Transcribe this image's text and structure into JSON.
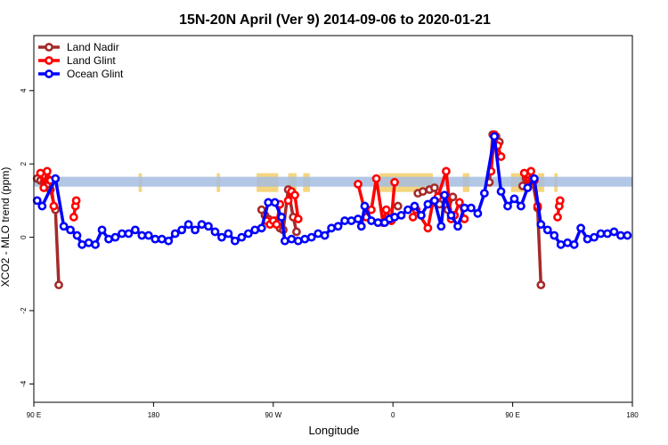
{
  "chart_data": {
    "type": "line",
    "title": "15N-20N April (Ver 9)   2014-09-06 to 2020-01-21",
    "xlabel": "Longitude",
    "ylabel": "XCO2 - MLO trend (ppm)",
    "xlim": [
      90,
      450
    ],
    "ylim": [
      -4.5,
      5.5
    ],
    "x_ticks": [
      {
        "value": 90,
        "label": "90 E"
      },
      {
        "value": 162,
        "label": "180"
      },
      {
        "value": 234,
        "label": "90 W"
      },
      {
        "value": 306,
        "label": "0"
      },
      {
        "value": 378,
        "label": "90 E"
      },
      {
        "value": 450,
        "label": "180"
      }
    ],
    "y_ticks": [
      {
        "value": -4,
        "label": "-4"
      },
      {
        "value": -2,
        "label": "-2"
      },
      {
        "value": 0,
        "label": "0"
      },
      {
        "value": 2,
        "label": "2"
      },
      {
        "value": 4,
        "label": "4"
      }
    ],
    "grid": false,
    "legend_position": "top-left",
    "band": {
      "y0": 1.38,
      "y1": 1.65,
      "color": "#a4bde0"
    },
    "land_color": "#f5d67e",
    "land_spans": [
      [
        97,
        99
      ],
      [
        153,
        155
      ],
      [
        200,
        202
      ],
      [
        224,
        237
      ],
      [
        243,
        248
      ],
      [
        252,
        256
      ],
      [
        298,
        330
      ],
      [
        348,
        352
      ],
      [
        377,
        387
      ],
      [
        393,
        397
      ],
      [
        403,
        405
      ]
    ],
    "series": [
      {
        "name": "Land Nadir",
        "color": "#a52a2a",
        "segments": [
          [
            [
              92,
              1.6
            ],
            [
              94,
              1.55
            ],
            [
              96,
              1.5
            ],
            [
              98,
              1.4
            ],
            [
              100,
              1.3
            ],
            [
              103,
              0.75
            ],
            [
              105,
              -1.3
            ]
          ],
          [
            [
              227,
              0.75
            ],
            [
              229,
              0.6
            ],
            [
              231,
              0.5
            ],
            [
              235,
              0.45
            ],
            [
              238,
              0.25
            ],
            [
              240,
              0.2
            ],
            [
              243,
              1.3
            ],
            [
              246,
              0.55
            ],
            [
              248,
              0.15
            ]
          ],
          [
            [
              309,
              0.85
            ]
          ],
          [
            [
              321,
              1.2
            ],
            [
              324,
              1.25
            ],
            [
              328,
              1.3
            ],
            [
              331,
              1.35
            ],
            [
              334,
              0.9
            ],
            [
              339,
              0.75
            ],
            [
              342,
              1.1
            ]
          ],
          [
            [
              364,
              1.5
            ],
            [
              366,
              2.8
            ],
            [
              368,
              2.75
            ],
            [
              370,
              2.6
            ]
          ],
          [
            [
              384,
              1.4
            ],
            [
              386,
              1.6
            ],
            [
              388,
              1.7
            ],
            [
              390,
              1.5
            ],
            [
              393,
              0.8
            ],
            [
              395,
              -1.3
            ]
          ]
        ]
      },
      {
        "name": "Land Glint",
        "color": "#ff0000",
        "segments": [
          [
            [
              94,
              1.75
            ],
            [
              96,
              1.35
            ],
            [
              98,
              1.8
            ],
            [
              100,
              1.55
            ],
            [
              102,
              0.85
            ]
          ],
          [
            [
              114,
              0.55
            ],
            [
              115,
              0.85
            ],
            [
              115.5,
              1.0
            ]
          ],
          [
            [
              230,
              0.45
            ],
            [
              232,
              0.35
            ],
            [
              234,
              0.45
            ],
            [
              236,
              0.35
            ],
            [
              238,
              0.9
            ]
          ],
          [
            [
              243,
              1.0
            ],
            [
              245,
              1.25
            ],
            [
              247,
              1.15
            ],
            [
              249,
              0.5
            ]
          ],
          [
            [
              285,
              1.45
            ],
            [
              290,
              0.55
            ],
            [
              293,
              0.75
            ],
            [
              296,
              1.6
            ],
            [
              300,
              0.4
            ],
            [
              302,
              0.75
            ],
            [
              305,
              0.45
            ],
            [
              307,
              1.5
            ]
          ],
          [
            [
              318,
              0.55
            ],
            [
              320,
              0.75
            ],
            [
              327,
              0.25
            ],
            [
              330,
              0.95
            ],
            [
              333,
              1.1
            ],
            [
              338,
              1.8
            ],
            [
              341,
              0.5
            ],
            [
              343,
              0.6
            ],
            [
              346,
              0.95
            ],
            [
              349,
              0.5
            ]
          ],
          [
            [
              365,
              1.8
            ],
            [
              367,
              2.8
            ],
            [
              369,
              2.5
            ],
            [
              371,
              2.2
            ]
          ],
          [
            [
              385,
              1.75
            ],
            [
              387,
              1.35
            ],
            [
              389,
              1.8
            ],
            [
              391,
              1.55
            ],
            [
              393,
              0.85
            ]
          ],
          [
            [
              405,
              0.55
            ],
            [
              406,
              0.85
            ],
            [
              406.5,
              1.0
            ]
          ]
        ]
      },
      {
        "name": "Ocean Glint",
        "color": "#0000ff",
        "segments": [
          [
            [
              92,
              1.0
            ],
            [
              95,
              0.85
            ],
            [
              103,
              1.6
            ],
            [
              108,
              0.3
            ],
            [
              112,
              0.2
            ],
            [
              116,
              0.05
            ],
            [
              119,
              -0.2
            ],
            [
              123,
              -0.15
            ],
            [
              127,
              -0.2
            ],
            [
              131,
              0.2
            ],
            [
              135,
              -0.05
            ],
            [
              139,
              0.0
            ],
            [
              143,
              0.1
            ],
            [
              147,
              0.1
            ],
            [
              151,
              0.2
            ],
            [
              155,
              0.05
            ],
            [
              159,
              0.05
            ],
            [
              163,
              -0.05
            ],
            [
              167,
              -0.05
            ],
            [
              171,
              -0.1
            ],
            [
              175,
              0.1
            ],
            [
              179,
              0.2
            ],
            [
              183,
              0.35
            ],
            [
              187,
              0.2
            ],
            [
              191,
              0.35
            ],
            [
              195,
              0.3
            ],
            [
              199,
              0.15
            ],
            [
              203,
              0.0
            ],
            [
              207,
              0.1
            ],
            [
              211,
              -0.1
            ],
            [
              215,
              0.0
            ],
            [
              219,
              0.1
            ],
            [
              223,
              0.2
            ],
            [
              227,
              0.25
            ],
            [
              231,
              0.95
            ],
            [
              235,
              0.95
            ],
            [
              239,
              0.55
            ],
            [
              241,
              -0.1
            ],
            [
              245,
              -0.05
            ],
            [
              249,
              -0.1
            ],
            [
              253,
              -0.05
            ],
            [
              257,
              0.0
            ],
            [
              261,
              0.1
            ],
            [
              265,
              0.05
            ],
            [
              269,
              0.25
            ],
            [
              273,
              0.3
            ],
            [
              277,
              0.45
            ],
            [
              281,
              0.45
            ],
            [
              285,
              0.5
            ],
            [
              287,
              0.3
            ],
            [
              289,
              0.85
            ],
            [
              293,
              0.45
            ],
            [
              297,
              0.4
            ],
            [
              301,
              0.4
            ],
            [
              304,
              0.5
            ],
            [
              307,
              0.55
            ],
            [
              311,
              0.6
            ],
            [
              315,
              0.75
            ],
            [
              319,
              0.85
            ],
            [
              323,
              0.6
            ],
            [
              327,
              0.9
            ],
            [
              331,
              1.0
            ],
            [
              335,
              0.3
            ],
            [
              337,
              1.15
            ],
            [
              341,
              0.6
            ],
            [
              345,
              0.3
            ],
            [
              349,
              0.8
            ],
            [
              353,
              0.8
            ],
            [
              357,
              0.65
            ],
            [
              361,
              1.2
            ],
            [
              367,
              2.75
            ],
            [
              371,
              1.25
            ],
            [
              375,
              0.85
            ],
            [
              379,
              1.05
            ],
            [
              383,
              0.85
            ],
            [
              387,
              1.35
            ],
            [
              391,
              1.6
            ],
            [
              395,
              0.35
            ],
            [
              399,
              0.2
            ],
            [
              403,
              0.05
            ],
            [
              407,
              -0.2
            ],
            [
              411,
              -0.15
            ],
            [
              415,
              -0.2
            ],
            [
              419,
              0.25
            ],
            [
              423,
              -0.05
            ],
            [
              427,
              0.0
            ],
            [
              431,
              0.1
            ],
            [
              435,
              0.1
            ],
            [
              439,
              0.15
            ],
            [
              443,
              0.05
            ],
            [
              447,
              0.05
            ]
          ]
        ]
      }
    ]
  }
}
